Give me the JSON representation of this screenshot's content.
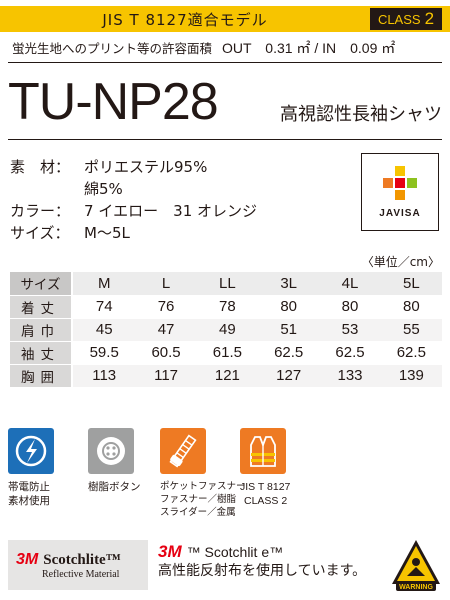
{
  "banner": {
    "standard": "JIS T 8127適合モデル",
    "class_label": "CLASS",
    "class_number": "2",
    "color": "#f7c400"
  },
  "print_area": {
    "label": "蛍光生地へのプリント等の許容面積",
    "value": "OUT　0.31 ㎡ / IN　0.09 ㎡"
  },
  "product": {
    "model": "TU-NP28",
    "name": "高視認性長袖シャツ"
  },
  "specs": [
    {
      "label": "素　材：",
      "value": "ポリエステル95%"
    },
    {
      "label": "",
      "value": "綿5%"
    },
    {
      "label": "カラー：",
      "value": "7 イエロー　31 オレンジ"
    },
    {
      "label": "サイズ：",
      "value": "M〜5L"
    }
  ],
  "certification_logo": {
    "text": "JAVISA",
    "icon": "javisa-logo"
  },
  "size_table": {
    "unit": "〈単位／cm〉",
    "header_label": "サイズ",
    "sizes": [
      "M",
      "L",
      "LL",
      "3L",
      "4L",
      "5L"
    ],
    "rows": [
      {
        "label": "着丈",
        "values": [
          "74",
          "76",
          "78",
          "80",
          "80",
          "80"
        ]
      },
      {
        "label": "肩巾",
        "values": [
          "45",
          "47",
          "49",
          "51",
          "53",
          "55"
        ]
      },
      {
        "label": "袖丈",
        "values": [
          "59.5",
          "60.5",
          "61.5",
          "62.5",
          "62.5",
          "62.5"
        ]
      },
      {
        "label": "胸囲",
        "values": [
          "113",
          "117",
          "121",
          "127",
          "133",
          "139"
        ]
      }
    ]
  },
  "features": [
    {
      "icon": "antistatic-icon",
      "lines": [
        "帯電防止",
        "素材使用"
      ],
      "color": "#1d6fb8"
    },
    {
      "icon": "resin-button-icon",
      "lines": [
        "樹脂ボタン",
        ""
      ],
      "color": "#9fa0a0"
    },
    {
      "icon": "zipper-icon",
      "lines": [
        "ポケットファスナー",
        "ファスナー／樹脂",
        "スライダー／金属"
      ],
      "color": "#ee7a23"
    },
    {
      "icon": "safety-vest-icon",
      "lines": [
        "JIS T 8127",
        "CLASS 2"
      ],
      "color": "#ee7a23"
    }
  ],
  "footer": {
    "badge_mark": "3M",
    "badge_brand": "Scotchlite™",
    "badge_sub": "Reflective Material",
    "text_mark": "3M",
    "text_line1": "™ Scotchlit e™",
    "text_line2": "高性能反射布を使用しています。",
    "warning_label": "WARNING"
  }
}
